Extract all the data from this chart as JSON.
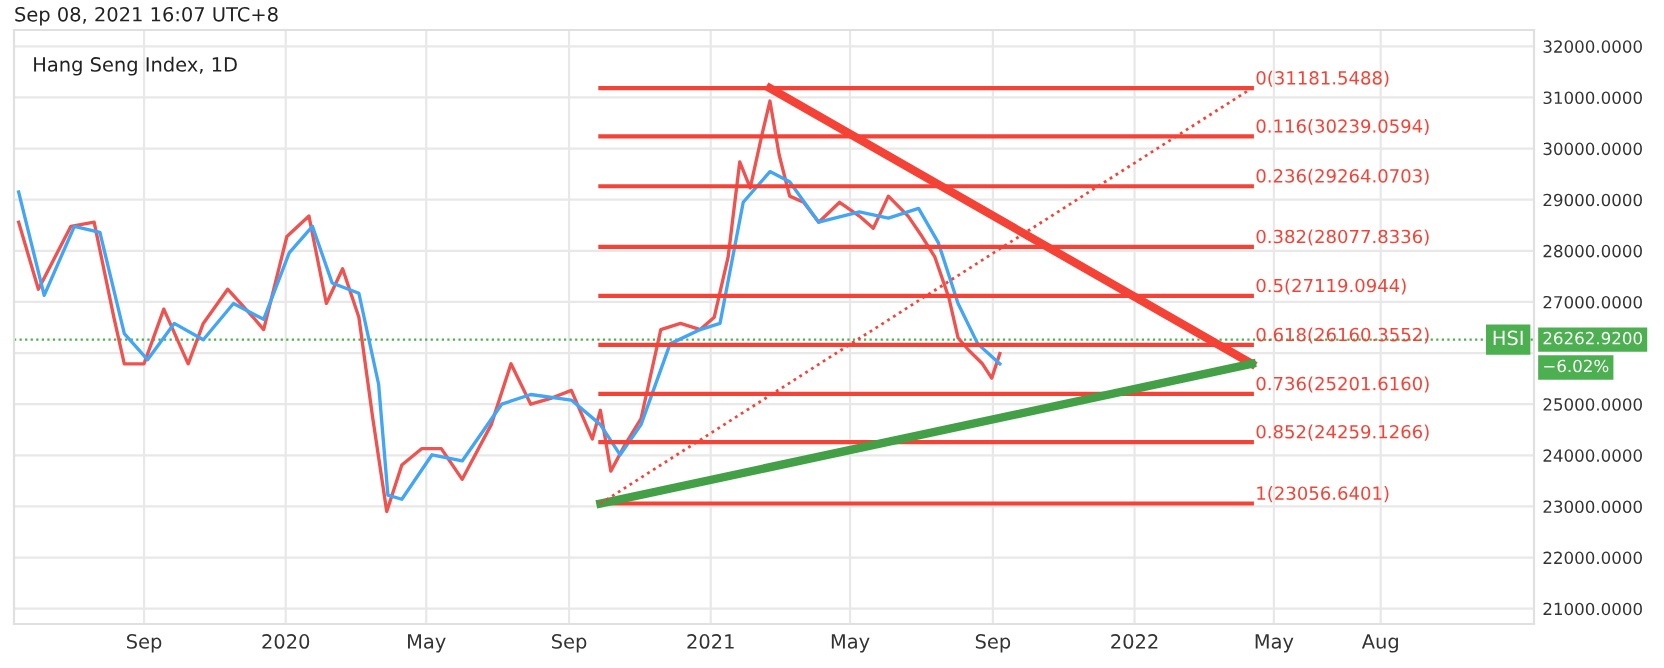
{
  "chart_data": {
    "type": "line",
    "title": "Hang Seng Index, 1D",
    "annotations": [
      "Sep 08, 2021 16:07 UTC+8",
      {
        "text": "0(31181.5488)",
        "x": "2022-04-12",
        "y": 31181.5488
      },
      {
        "text": "0.116(30239.0594)",
        "x": "2022-04-12",
        "y": 30239.0594
      },
      {
        "text": "0.236(29264.0703)",
        "x": "2022-04-12",
        "y": 29264.0703
      },
      {
        "text": "0.382(28077.8336)",
        "x": "2022-04-12",
        "y": 28077.8336
      },
      {
        "text": "0.5(27119.0944)",
        "x": "2022-04-12",
        "y": 27119.0944
      },
      {
        "text": "0.618(26160.3552)",
        "x": "2022-04-12",
        "y": 26160.3552
      },
      {
        "text": "0.736(25201.6160)",
        "x": "2022-04-12",
        "y": 25201.616
      },
      {
        "text": "0.852(24259.1266)",
        "x": "2022-04-12",
        "y": 24259.1266
      },
      {
        "text": "1(23056.6401)",
        "x": "2022-04-12",
        "y": 23056.6401
      },
      "26262.9200",
      "−6.02%"
    ],
    "series": [
      {
        "color": "#ef5350",
        "x": [
          "2019-05-16",
          "2019-06-02",
          "2019-06-30",
          "2019-07-20",
          "2019-08-06",
          "2019-08-15",
          "2019-09-01",
          "2019-09-18",
          "2019-10-09",
          "2019-10-22",
          "2019-11-12",
          "2019-12-04",
          "2019-12-13",
          "2020-01-02",
          "2020-01-21",
          "2020-02-05",
          "2020-02-19",
          "2020-03-04",
          "2020-03-16",
          "2020-03-28",
          "2020-04-10",
          "2020-04-27",
          "2020-05-14",
          "2020-06-01",
          "2020-06-26",
          "2020-07-13",
          "2020-07-30",
          "2020-08-17",
          "2020-09-03",
          "2020-09-21",
          "2020-09-28",
          "2020-10-07",
          "2020-10-19",
          "2020-11-02",
          "2020-11-19",
          "2020-12-06",
          "2020-12-23",
          "2021-01-04",
          "2021-01-16",
          "2021-01-26",
          "2021-02-04",
          "2021-02-14",
          "2021-02-21",
          "2021-03-01",
          "2021-03-10",
          "2021-03-22",
          "2021-04-04",
          "2021-04-22",
          "2021-05-09",
          "2021-05-21",
          "2021-06-03",
          "2021-06-20",
          "2021-07-02",
          "2021-07-13",
          "2021-07-25",
          "2021-08-02",
          "2021-08-11",
          "2021-08-23",
          "2021-08-31",
          "2021-09-07"
        ],
        "values": [
          28560,
          27250,
          28480,
          28560,
          26700,
          25790,
          25790,
          26860,
          25790,
          26580,
          27250,
          26700,
          26460,
          28280,
          28680,
          26970,
          27650,
          26700,
          24720,
          22900,
          23810,
          24130,
          24130,
          23530,
          24600,
          25790,
          25000,
          25120,
          25270,
          24320,
          24880,
          23690,
          24200,
          24720,
          26460,
          26580,
          26460,
          26700,
          27880,
          29740,
          29230,
          30260,
          30930,
          29870,
          29070,
          28950,
          28560,
          28950,
          28680,
          28440,
          29070,
          28680,
          28280,
          27880,
          27090,
          26300,
          26060,
          25790,
          25510,
          25990
        ]
      },
      {
        "color": "#42a5f5",
        "x": [
          "2019-05-16",
          "2019-06-07",
          "2019-07-03",
          "2019-07-25",
          "2019-08-15",
          "2019-09-04",
          "2019-09-27",
          "2019-10-22",
          "2019-11-17",
          "2019-12-13",
          "2020-01-04",
          "2020-01-24",
          "2020-02-10",
          "2020-03-04",
          "2020-03-21",
          "2020-03-29",
          "2020-04-10",
          "2020-05-06",
          "2020-06-01",
          "2020-07-05",
          "2020-07-30",
          "2020-09-03",
          "2020-09-28",
          "2020-10-15",
          "2020-11-02",
          "2020-11-27",
          "2020-12-23",
          "2021-01-09",
          "2021-01-29",
          "2021-02-21",
          "2021-03-10",
          "2021-04-04",
          "2021-05-09",
          "2021-06-03",
          "2021-06-29",
          "2021-07-16",
          "2021-08-02",
          "2021-08-19",
          "2021-09-07"
        ],
        "values": [
          29150,
          27130,
          28480,
          28360,
          26380,
          25870,
          26580,
          26260,
          26970,
          26660,
          27960,
          28480,
          27370,
          27170,
          25390,
          23220,
          23140,
          24010,
          23890,
          25000,
          25190,
          25080,
          24600,
          24010,
          24600,
          26180,
          26460,
          26580,
          28950,
          29550,
          29350,
          28560,
          28760,
          28640,
          28830,
          28160,
          26970,
          26180,
          25790
        ]
      },
      {
        "color": "#f44336",
        "x": [
          "2020-09-28",
          "2022-04-12"
        ],
        "values": [
          31181.5488,
          31181.5488
        ]
      },
      {
        "color": "#f44336",
        "x": [
          "2020-09-28",
          "2022-04-12"
        ],
        "values": [
          30239.0594,
          30239.0594
        ]
      },
      {
        "color": "#f44336",
        "x": [
          "2020-09-28",
          "2022-04-12"
        ],
        "values": [
          29264.0703,
          29264.0703
        ]
      },
      {
        "color": "#f44336",
        "x": [
          "2020-09-28",
          "2022-04-12"
        ],
        "values": [
          28077.8336,
          28077.8336
        ]
      },
      {
        "color": "#f44336",
        "x": [
          "2020-09-28",
          "2022-04-12"
        ],
        "values": [
          27119.0944,
          27119.0944
        ]
      },
      {
        "color": "#f44336",
        "x": [
          "2020-09-28",
          "2022-04-12"
        ],
        "values": [
          26160.3552,
          26160.3552
        ]
      },
      {
        "color": "#f44336",
        "x": [
          "2020-09-28",
          "2022-04-12"
        ],
        "values": [
          25201.616,
          25201.616
        ]
      },
      {
        "color": "#f44336",
        "x": [
          "2020-09-28",
          "2022-04-12"
        ],
        "values": [
          24259.1266,
          24259.1266
        ]
      },
      {
        "color": "#f44336",
        "x": [
          "2020-09-28",
          "2022-04-12"
        ],
        "values": [
          23056.6401,
          23056.6401
        ]
      },
      {
        "color": "#f44336",
        "line_style": "dotted",
        "x": [
          "2020-09-28",
          "2022-04-12"
        ],
        "values": [
          23056.6401,
          31181.5488
        ]
      },
      {
        "color": "#f44336",
        "x": [
          "2021-02-21",
          "2022-04-12"
        ],
        "values": [
          31181.5488,
          25790
        ]
      },
      {
        "color": "#43a047",
        "x": [
          "2020-09-28",
          "2022-04-12"
        ],
        "values": [
          23056.6401,
          25790
        ]
      }
    ],
    "ref_lines": [
      {
        "axis": "y",
        "value": 26262.92,
        "label": "HSI",
        "color": "#4caf50",
        "line_style": "dotted"
      }
    ],
    "xlim": [
      "2019-05-12",
      "2022-12-11"
    ],
    "xticks": [
      {
        "value": "2019-09-01",
        "label": "Sep"
      },
      {
        "value": "2020-01-01",
        "label": "2020"
      },
      {
        "value": "2020-05-01",
        "label": "May"
      },
      {
        "value": "2020-09-01",
        "label": "Sep"
      },
      {
        "value": "2021-01-01",
        "label": "2021"
      },
      {
        "value": "2021-05-01",
        "label": "May"
      },
      {
        "value": "2021-09-01",
        "label": "Sep"
      },
      {
        "value": "2022-01-01",
        "label": "2022"
      },
      {
        "value": "2022-05-01",
        "label": "May"
      },
      {
        "value": "2022-08-01",
        "label": "Aug"
      }
    ],
    "ylim": [
      20700,
      32320
    ],
    "yticks": [
      {
        "value": 21000,
        "label": "21000.0000"
      },
      {
        "value": 22000,
        "label": "22000.0000"
      },
      {
        "value": 23000,
        "label": "23000.0000"
      },
      {
        "value": 24000,
        "label": "24000.0000"
      },
      {
        "value": 25000,
        "label": "25000.0000"
      },
      {
        "value": 26000,
        "label": null
      },
      {
        "value": 27000,
        "label": "27000.0000"
      },
      {
        "value": 28000,
        "label": "28000.0000"
      },
      {
        "value": 29000,
        "label": "29000.0000"
      },
      {
        "value": 30000,
        "label": "30000.0000"
      },
      {
        "value": 31000,
        "label": "31000.0000"
      },
      {
        "value": 32000,
        "label": "32000.0000"
      }
    ],
    "grid": true
  }
}
